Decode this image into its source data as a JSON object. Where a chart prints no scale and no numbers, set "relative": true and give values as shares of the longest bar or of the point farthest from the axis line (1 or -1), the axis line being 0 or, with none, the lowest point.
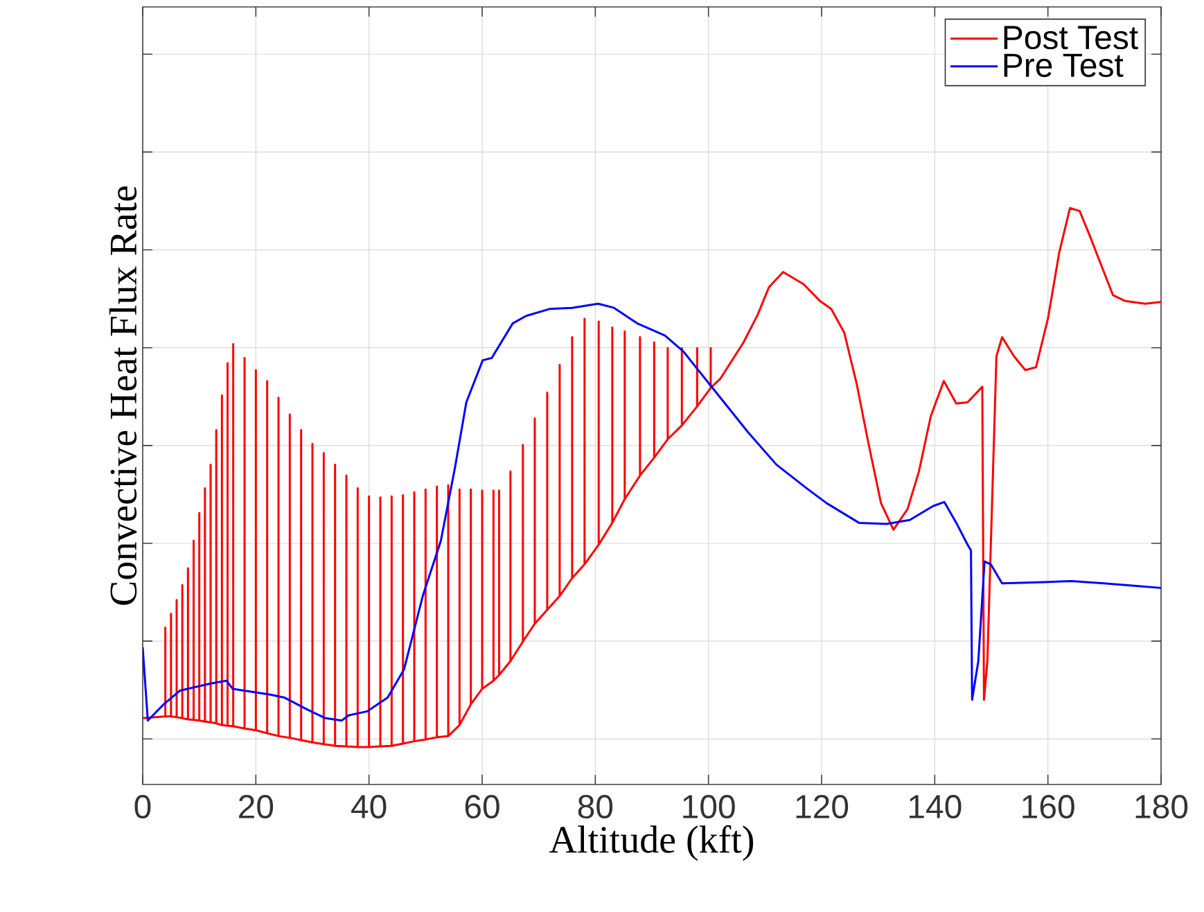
{
  "chart_data": {
    "type": "line",
    "xlabel": "Altitude (kft)",
    "ylabel": "Convective Heat Flux Rate",
    "relative": true,
    "xlim": [
      0,
      180
    ],
    "xticks": [
      0,
      20,
      40,
      60,
      80,
      100,
      120,
      140,
      160,
      180
    ],
    "grid": true,
    "legend": "top right",
    "marker": "none",
    "line_style": "solid",
    "series": [
      {
        "name": "Post Test",
        "color": "#ff0000",
        "x": [
          0,
          4,
          4,
          4,
          5,
          5,
          5,
          6,
          6,
          6,
          7,
          7,
          7,
          8,
          8,
          8,
          9,
          9,
          9,
          10,
          10,
          10,
          11,
          11,
          11,
          12,
          12,
          12,
          13,
          13,
          13,
          14,
          14,
          14,
          15,
          15,
          15,
          16,
          16,
          16,
          18,
          18,
          18,
          20,
          20,
          20,
          22,
          22,
          22,
          24,
          24,
          24,
          26,
          26,
          26,
          28,
          28,
          28,
          30,
          30,
          30,
          32,
          32,
          32,
          34,
          34,
          34,
          36,
          36,
          36,
          38,
          38,
          38,
          40,
          40,
          40,
          42,
          42,
          42,
          44,
          44,
          44,
          46,
          46,
          46,
          48,
          48,
          48,
          50,
          50,
          50,
          52,
          52,
          52,
          54,
          54,
          54,
          56,
          56,
          56,
          58,
          58,
          58,
          60,
          60,
          60,
          62,
          62,
          62,
          63,
          63,
          63,
          65,
          65,
          65,
          67.2,
          67.2,
          67.2,
          69.3,
          69.3,
          69.3,
          71.5,
          71.5,
          71.5,
          73.7,
          73.7,
          73.7,
          75.9,
          75.9,
          75.9,
          78.1,
          78.1,
          78.1,
          80.6,
          80.6,
          80.6,
          83,
          83,
          83,
          85.2,
          85.2,
          85.2,
          87.9,
          87.9,
          87.9,
          90.4,
          90.4,
          90.4,
          92.8,
          92.8,
          92.8,
          95.3,
          95.3,
          95.3,
          98,
          98,
          98,
          100.4,
          100.4,
          100.4,
          102.1,
          106.2,
          108.7,
          110.7,
          113.2,
          116.8,
          119.7,
          121.7,
          124,
          126.2,
          128.3,
          130.5,
          132.7,
          135.2,
          137.2,
          139.3,
          141.6,
          143.8,
          145.8,
          148.4,
          148.7,
          149.3,
          150.9,
          151.9,
          154,
          156,
          157.9,
          160,
          162,
          163.9,
          165.6,
          167.4,
          169.5,
          171.5,
          173.6,
          177.2,
          180
        ],
        "values": [
          0.115,
          0.118,
          0.272,
          0.118,
          0.118,
          0.296,
          0.118,
          0.117,
          0.32,
          0.117,
          0.115,
          0.346,
          0.115,
          0.113,
          0.375,
          0.113,
          0.112,
          0.423,
          0.112,
          0.111,
          0.471,
          0.111,
          0.109,
          0.514,
          0.109,
          0.108,
          0.555,
          0.108,
          0.106,
          0.615,
          0.106,
          0.103,
          0.675,
          0.103,
          0.102,
          0.731,
          0.102,
          0.101,
          0.764,
          0.101,
          0.097,
          0.74,
          0.097,
          0.094,
          0.719,
          0.094,
          0.089,
          0.7,
          0.089,
          0.084,
          0.671,
          0.084,
          0.081,
          0.642,
          0.081,
          0.077,
          0.615,
          0.077,
          0.073,
          0.591,
          0.073,
          0.07,
          0.575,
          0.07,
          0.067,
          0.555,
          0.067,
          0.066,
          0.536,
          0.066,
          0.065,
          0.514,
          0.065,
          0.065,
          0.5,
          0.065,
          0.066,
          0.498,
          0.066,
          0.067,
          0.5,
          0.067,
          0.071,
          0.502,
          0.071,
          0.075,
          0.507,
          0.075,
          0.078,
          0.512,
          0.078,
          0.082,
          0.517,
          0.082,
          0.084,
          0.519,
          0.084,
          0.103,
          0.512,
          0.103,
          0.139,
          0.512,
          0.139,
          0.166,
          0.51,
          0.166,
          0.18,
          0.51,
          0.18,
          0.19,
          0.51,
          0.19,
          0.214,
          0.543,
          0.214,
          0.248,
          0.589,
          0.248,
          0.279,
          0.635,
          0.279,
          0.303,
          0.68,
          0.303,
          0.327,
          0.728,
          0.327,
          0.358,
          0.776,
          0.358,
          0.382,
          0.808,
          0.382,
          0.416,
          0.803,
          0.416,
          0.454,
          0.793,
          0.454,
          0.495,
          0.786,
          0.495,
          0.536,
          0.776,
          0.536,
          0.567,
          0.767,
          0.567,
          0.599,
          0.757,
          0.599,
          0.623,
          0.757,
          0.623,
          0.656,
          0.757,
          0.656,
          0.688,
          0.757,
          0.688,
          0.704,
          0.767,
          0.815,
          0.863,
          0.889,
          0.868,
          0.839,
          0.825,
          0.784,
          0.695,
          0.591,
          0.488,
          0.442,
          0.478,
          0.543,
          0.639,
          0.7,
          0.661,
          0.663,
          0.69,
          0.147,
          0.214,
          0.743,
          0.776,
          0.743,
          0.719,
          0.724,
          0.808,
          0.923,
          1.0,
          0.995,
          0.952,
          0.899,
          0.849,
          0.839,
          0.834,
          0.837
        ]
      },
      {
        "name": "Pre Test",
        "color": "#0000ff",
        "x": [
          0,
          0.9,
          3.7,
          6.6,
          11.9,
          14.8,
          15.9,
          22.5,
          25,
          29.1,
          32.3,
          35.2,
          36.4,
          39.7,
          43.3,
          46.2,
          49.5,
          52.7,
          55.2,
          57.2,
          60.1,
          61.7,
          65.4,
          67.8,
          71.9,
          75.9,
          80.5,
          83.3,
          87.4,
          92.3,
          95.5,
          100.4,
          107,
          112,
          117.6,
          120.9,
          126.6,
          131.5,
          135.6,
          139.7,
          141.7,
          143.8,
          145.8,
          146.4,
          146.6,
          147.7,
          148.8,
          149.9,
          151.9,
          159.3,
          164.2,
          169.9,
          176.4,
          180
        ],
        "values": [
          0.238,
          0.111,
          0.139,
          0.163,
          0.175,
          0.18,
          0.166,
          0.156,
          0.151,
          0.13,
          0.115,
          0.111,
          0.12,
          0.127,
          0.151,
          0.2,
          0.327,
          0.423,
          0.55,
          0.663,
          0.736,
          0.74,
          0.8,
          0.813,
          0.825,
          0.827,
          0.834,
          0.827,
          0.8,
          0.779,
          0.752,
          0.692,
          0.611,
          0.555,
          0.512,
          0.488,
          0.454,
          0.452,
          0.459,
          0.483,
          0.49,
          0.454,
          0.416,
          0.406,
          0.147,
          0.214,
          0.387,
          0.382,
          0.349,
          0.351,
          0.353,
          0.349,
          0.344,
          0.341
        ]
      }
    ]
  }
}
